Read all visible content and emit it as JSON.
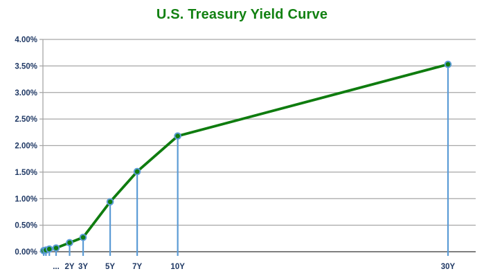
{
  "title": "U.S. Treasury Yield Curve",
  "colors": {
    "title_green": "#128112",
    "line_green": "#0F7C0F",
    "marker_fill": "#0F7C0F",
    "marker_ring": "#5B9BD5",
    "drop_line": "#5B9BD5",
    "gridline": "#A6A6A6",
    "axis_line": "#7F7F7F",
    "axis_label": "#1F3864",
    "background": "#FFFFFF"
  },
  "chart_data": {
    "type": "line",
    "title": "U.S. Treasury Yield Curve",
    "xlabel": "",
    "ylabel": "",
    "x_unit": "maturity_years",
    "y_unit": "percent",
    "points": [
      {
        "label": "",
        "maturity_years": 0.083,
        "yield_pct": 0.02
      },
      {
        "label": "",
        "maturity_years": 0.25,
        "yield_pct": 0.03
      },
      {
        "label": "",
        "maturity_years": 0.5,
        "yield_pct": 0.05
      },
      {
        "label": "...",
        "maturity_years": 1,
        "yield_pct": 0.07
      },
      {
        "label": "2Y",
        "maturity_years": 2,
        "yield_pct": 0.17
      },
      {
        "label": "3Y",
        "maturity_years": 3,
        "yield_pct": 0.27
      },
      {
        "label": "5Y",
        "maturity_years": 5,
        "yield_pct": 0.94
      },
      {
        "label": "7Y",
        "maturity_years": 7,
        "yield_pct": 1.51
      },
      {
        "label": "10Y",
        "maturity_years": 10,
        "yield_pct": 2.18
      },
      {
        "label": "30Y",
        "maturity_years": 30,
        "yield_pct": 3.53
      }
    ],
    "y_axis": {
      "min": 0,
      "max": 4,
      "step": 0.5,
      "tick_labels": [
        "0.00%",
        "0.50%",
        "1.00%",
        "1.50%",
        "2.00%",
        "2.50%",
        "3.00%",
        "3.50%",
        "4.00%"
      ]
    },
    "grid": true,
    "drop_lines": true,
    "legend_position": "none"
  }
}
